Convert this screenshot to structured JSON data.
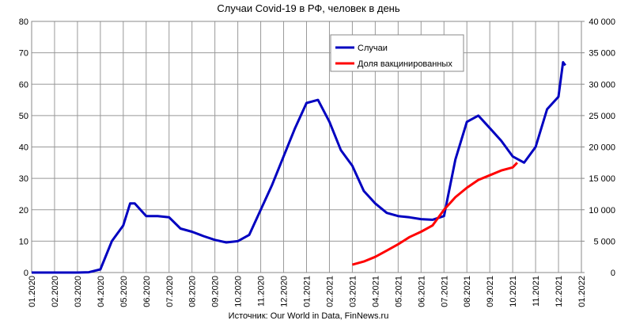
{
  "chart_data": {
    "type": "line",
    "title": "Случаи Covid-19 в РФ, человек в день",
    "source": "Источник: Our World in Data, FinNews.ru",
    "xlim": [
      0,
      24
    ],
    "xticks": [
      {
        "value": 0,
        "label": "01.2020"
      },
      {
        "value": 1,
        "label": "02.2020"
      },
      {
        "value": 2,
        "label": "03.2020"
      },
      {
        "value": 3,
        "label": "04.2020"
      },
      {
        "value": 4,
        "label": "05.2020"
      },
      {
        "value": 5,
        "label": "06.2020"
      },
      {
        "value": 6,
        "label": "07.2020"
      },
      {
        "value": 7,
        "label": "08.2020"
      },
      {
        "value": 8,
        "label": "09.2020"
      },
      {
        "value": 9,
        "label": "10.2020"
      },
      {
        "value": 10,
        "label": "11.2020"
      },
      {
        "value": 11,
        "label": "12.2020"
      },
      {
        "value": 12,
        "label": "01.2021"
      },
      {
        "value": 13,
        "label": "02.2021"
      },
      {
        "value": 14,
        "label": "03.2021"
      },
      {
        "value": 15,
        "label": "04.2021"
      },
      {
        "value": 16,
        "label": "05.2021"
      },
      {
        "value": 17,
        "label": "06.2021"
      },
      {
        "value": 18,
        "label": "07.2021"
      },
      {
        "value": 19,
        "label": "08.2021"
      },
      {
        "value": 20,
        "label": "09.2021"
      },
      {
        "value": 21,
        "label": "10.2021"
      },
      {
        "value": 22,
        "label": "11.2021"
      },
      {
        "value": 23,
        "label": "12.2021"
      },
      {
        "value": 24,
        "label": "01.2022"
      }
    ],
    "ylim": [
      0,
      80
    ],
    "yticks": [
      0,
      10,
      20,
      30,
      40,
      50,
      60,
      70,
      80
    ],
    "y2lim": [
      0,
      40000
    ],
    "y2ticks": [
      0,
      {
        "value": 5000,
        "label": "5 000"
      },
      {
        "value": 10000,
        "label": "10 000"
      },
      {
        "value": 15000,
        "label": "15 000"
      },
      {
        "value": 20000,
        "label": "20 000"
      },
      {
        "value": 25000,
        "label": "25 000"
      },
      {
        "value": 30000,
        "label": "30 000"
      },
      {
        "value": 35000,
        "label": "35 000"
      },
      {
        "value": 40000,
        "label": "40 000"
      }
    ],
    "grid": true,
    "series": [
      {
        "name": "Случаи",
        "color": "#0000c0",
        "axis": "y2",
        "x": [
          0,
          1,
          2,
          2.5,
          3,
          3.5,
          4,
          4.3,
          4.5,
          5,
          5.5,
          6,
          6.5,
          7,
          7.5,
          8,
          8.5,
          9,
          9.5,
          10,
          10.5,
          11,
          11.5,
          12,
          12.5,
          13,
          13.5,
          14,
          14.5,
          15,
          15.5,
          16,
          16.5,
          17,
          17.5,
          18,
          18.5,
          19,
          19.5,
          20,
          20.5,
          21,
          21.5,
          22,
          22.5,
          23,
          23.2,
          23.3
        ],
        "values": [
          0,
          0,
          0,
          50,
          500,
          5000,
          7500,
          11000,
          11000,
          9000,
          9000,
          8800,
          7000,
          6500,
          5800,
          5200,
          4800,
          5000,
          6000,
          10000,
          14000,
          18500,
          23000,
          27000,
          27500,
          24000,
          19500,
          17000,
          13000,
          11000,
          9500,
          9000,
          8800,
          8500,
          8400,
          9000,
          18000,
          24000,
          25000,
          23000,
          21000,
          18500,
          17500,
          20000,
          26000,
          28000,
          33500,
          33000
        ]
      },
      {
        "name": "Доля вакцинированных",
        "color": "#ff0000",
        "x": [
          14,
          14.5,
          15,
          15.5,
          16,
          16.5,
          17,
          17.5,
          18,
          18.5,
          19,
          19.5,
          20,
          20.5,
          21,
          21.2
        ],
        "values": [
          2.5,
          3.5,
          5,
          7,
          9,
          11.3,
          13,
          15,
          20,
          24,
          27,
          29.5,
          31,
          32.5,
          33.5,
          35
        ]
      }
    ]
  }
}
